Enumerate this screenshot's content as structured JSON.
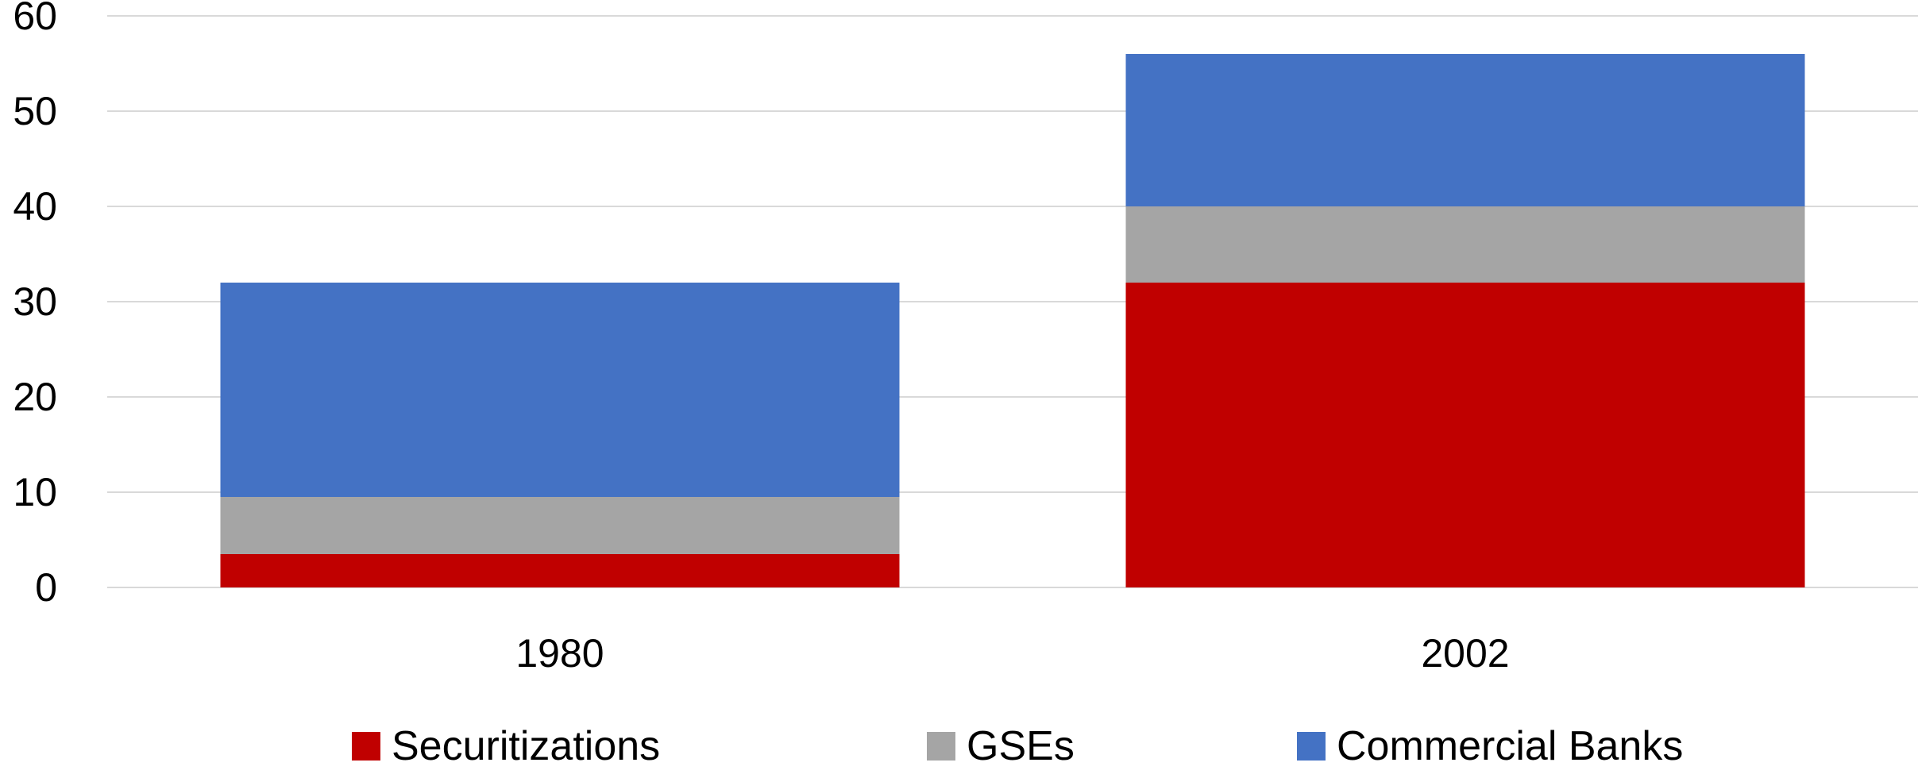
{
  "chart_data": {
    "type": "bar",
    "stacked": true,
    "categories": [
      "1980",
      "2002"
    ],
    "series": [
      {
        "name": "Securitizations",
        "color": "#c00000",
        "values": [
          3.5,
          32
        ]
      },
      {
        "name": "GSEs",
        "color": "#a5a5a5",
        "values": [
          6,
          8
        ]
      },
      {
        "name": "Commercial Banks",
        "color": "#4472c4",
        "values": [
          22.5,
          16
        ]
      }
    ],
    "ylim": [
      0,
      60
    ],
    "yticks": [
      0,
      10,
      20,
      30,
      40,
      50,
      60
    ],
    "grid": true,
    "legend_position": "bottom"
  }
}
